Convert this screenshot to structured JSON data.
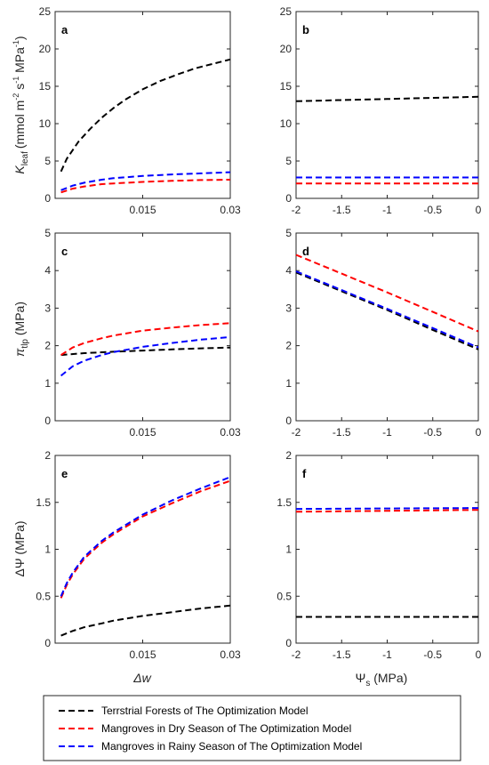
{
  "legend": [
    {
      "label": "Terrstrial Forests of The Optimization Model",
      "color": "#000000"
    },
    {
      "label": "Mangroves in Dry Season of The Optimization Model",
      "color": "#ff0000"
    },
    {
      "label": "Mangroves in Rainy Season of The Optimization Model",
      "color": "#0000ff"
    }
  ],
  "axis_labels": {
    "kleaf_main": "K",
    "kleaf_sub": "leaf",
    "kleaf_units": "(mmol m",
    "kleaf_exp1": "-2",
    "kleaf_mid": " s",
    "kleaf_exp2": "-1",
    "kleaf_mid2": " MPa",
    "kleaf_exp3": "-1",
    "kleaf_close": ")",
    "pi_main": "π",
    "pi_sub": "tlp",
    "pi_units": " (MPa)",
    "dpsi": "ΔΨ (MPa)",
    "dw": "Δw",
    "psis_main": "Ψ",
    "psis_sub": "s",
    "psis_units": " (MPa)"
  },
  "chart_data": [
    {
      "panel": "a",
      "type": "line",
      "xlim": [
        0,
        0.03
      ],
      "ylim": [
        0,
        25
      ],
      "xticks": [
        "0.015",
        "0.03"
      ],
      "yticks": [
        "0",
        "5",
        "10",
        "15",
        "20",
        "25"
      ],
      "series": [
        {
          "name": "Terrstrial Forests of The Optimization Model",
          "color": "#000000",
          "x": [
            0.001,
            0.002,
            0.004,
            0.006,
            0.008,
            0.01,
            0.012,
            0.015,
            0.018,
            0.021,
            0.024,
            0.027,
            0.03
          ],
          "y": [
            3.6,
            5.3,
            7.6,
            9.3,
            10.8,
            12.1,
            13.2,
            14.6,
            15.7,
            16.6,
            17.4,
            18.0,
            18.6
          ]
        },
        {
          "name": "Mangroves in Dry Season of The Optimization Model",
          "color": "#ff0000",
          "x": [
            0.001,
            0.003,
            0.005,
            0.008,
            0.01,
            0.015,
            0.02,
            0.025,
            0.03
          ],
          "y": [
            0.8,
            1.3,
            1.6,
            1.9,
            2.0,
            2.2,
            2.35,
            2.45,
            2.5
          ]
        },
        {
          "name": "Mangroves in Rainy Season of The Optimization Model",
          "color": "#0000ff",
          "x": [
            0.001,
            0.003,
            0.005,
            0.008,
            0.01,
            0.015,
            0.02,
            0.025,
            0.03
          ],
          "y": [
            1.1,
            1.7,
            2.1,
            2.5,
            2.7,
            3.0,
            3.2,
            3.35,
            3.5
          ]
        }
      ]
    },
    {
      "panel": "b",
      "type": "line",
      "xlim": [
        -2,
        0
      ],
      "ylim": [
        0,
        25
      ],
      "xticks": [
        "-2",
        "-1.5",
        "-1",
        "-0.5",
        "0"
      ],
      "yticks": [
        "0",
        "5",
        "10",
        "15",
        "20",
        "25"
      ],
      "series": [
        {
          "name": "Terrstrial Forests of The Optimization Model",
          "color": "#000000",
          "x": [
            -2,
            -1.5,
            -1,
            -0.5,
            0
          ],
          "y": [
            13.0,
            13.15,
            13.3,
            13.45,
            13.6
          ]
        },
        {
          "name": "Mangroves in Dry Season of The Optimization Model",
          "color": "#ff0000",
          "x": [
            -2,
            0
          ],
          "y": [
            2.0,
            2.0
          ]
        },
        {
          "name": "Mangroves in Rainy Season of The Optimization Model",
          "color": "#0000ff",
          "x": [
            -2,
            0
          ],
          "y": [
            2.8,
            2.8
          ]
        }
      ]
    },
    {
      "panel": "c",
      "type": "line",
      "xlim": [
        0,
        0.03
      ],
      "ylim": [
        0,
        5
      ],
      "xticks": [
        "0.015",
        "0.03"
      ],
      "yticks": [
        "0",
        "1",
        "2",
        "3",
        "4",
        "5"
      ],
      "series": [
        {
          "name": "Terrstrial Forests of The Optimization Model",
          "color": "#000000",
          "x": [
            0.001,
            0.005,
            0.01,
            0.015,
            0.02,
            0.025,
            0.03
          ],
          "y": [
            1.75,
            1.8,
            1.84,
            1.87,
            1.9,
            1.93,
            1.95
          ]
        },
        {
          "name": "Mangroves in Dry Season of The Optimization Model",
          "color": "#ff0000",
          "x": [
            0.001,
            0.003,
            0.005,
            0.008,
            0.01,
            0.015,
            0.02,
            0.025,
            0.03
          ],
          "y": [
            1.75,
            1.95,
            2.07,
            2.2,
            2.27,
            2.4,
            2.48,
            2.55,
            2.6
          ]
        },
        {
          "name": "Mangroves in Rainy Season of The Optimization Model",
          "color": "#0000ff",
          "x": [
            0.001,
            0.003,
            0.005,
            0.008,
            0.01,
            0.015,
            0.02,
            0.025,
            0.03
          ],
          "y": [
            1.2,
            1.45,
            1.6,
            1.75,
            1.83,
            1.97,
            2.07,
            2.16,
            2.23
          ]
        }
      ]
    },
    {
      "panel": "d",
      "type": "line",
      "xlim": [
        -2,
        0
      ],
      "ylim": [
        0,
        5
      ],
      "xticks": [
        "-2",
        "-1.5",
        "-1",
        "-0.5",
        "0"
      ],
      "yticks": [
        "0",
        "1",
        "2",
        "3",
        "4",
        "5"
      ],
      "series": [
        {
          "name": "Terrstrial Forests of The Optimization Model",
          "color": "#000000",
          "x": [
            -2,
            -1.5,
            -1,
            -0.5,
            0
          ],
          "y": [
            3.95,
            3.45,
            2.95,
            2.42,
            1.9
          ]
        },
        {
          "name": "Mangroves in Dry Season of The Optimization Model",
          "color": "#ff0000",
          "x": [
            -2,
            -1.5,
            -1,
            -0.5,
            0
          ],
          "y": [
            4.42,
            3.92,
            3.42,
            2.9,
            2.38
          ]
        },
        {
          "name": "Mangroves in Rainy Season of The Optimization Model",
          "color": "#0000ff",
          "x": [
            -2,
            -1.5,
            -1,
            -0.5,
            0
          ],
          "y": [
            3.98,
            3.48,
            2.98,
            2.47,
            1.95
          ]
        }
      ]
    },
    {
      "panel": "e",
      "type": "line",
      "xlim": [
        0,
        0.03
      ],
      "ylim": [
        0,
        2
      ],
      "xticks": [
        "0.015",
        "0.03"
      ],
      "yticks": [
        "0",
        "0.5",
        "1",
        "1.5",
        "2"
      ],
      "series": [
        {
          "name": "Terrstrial Forests of The Optimization Model",
          "color": "#000000",
          "x": [
            0.001,
            0.003,
            0.005,
            0.008,
            0.01,
            0.015,
            0.02,
            0.025,
            0.03
          ],
          "y": [
            0.08,
            0.13,
            0.17,
            0.21,
            0.24,
            0.29,
            0.33,
            0.37,
            0.4
          ]
        },
        {
          "name": "Mangroves in Dry Season of The Optimization Model",
          "color": "#ff0000",
          "x": [
            0.001,
            0.002,
            0.003,
            0.005,
            0.008,
            0.01,
            0.015,
            0.02,
            0.025,
            0.03
          ],
          "y": [
            0.48,
            0.62,
            0.73,
            0.9,
            1.07,
            1.16,
            1.35,
            1.49,
            1.62,
            1.73
          ]
        },
        {
          "name": "Mangroves in Rainy Season of The Optimization Model",
          "color": "#0000ff",
          "x": [
            0.001,
            0.002,
            0.003,
            0.005,
            0.008,
            0.01,
            0.015,
            0.02,
            0.025,
            0.03
          ],
          "y": [
            0.5,
            0.64,
            0.75,
            0.92,
            1.09,
            1.18,
            1.37,
            1.52,
            1.65,
            1.77
          ]
        }
      ]
    },
    {
      "panel": "f",
      "type": "line",
      "xlim": [
        -2,
        0
      ],
      "ylim": [
        0,
        2
      ],
      "xticks": [
        "-2",
        "-1.5",
        "-1",
        "-0.5",
        "0"
      ],
      "yticks": [
        "0",
        "0.5",
        "1",
        "1.5",
        "2"
      ],
      "series": [
        {
          "name": "Terrstrial Forests of The Optimization Model",
          "color": "#000000",
          "x": [
            -2,
            0
          ],
          "y": [
            0.28,
            0.28
          ]
        },
        {
          "name": "Mangroves in Dry Season of The Optimization Model",
          "color": "#ff0000",
          "x": [
            -2,
            0
          ],
          "y": [
            1.4,
            1.42
          ]
        },
        {
          "name": "Mangroves in Rainy Season of The Optimization Model",
          "color": "#0000ff",
          "x": [
            -2,
            0
          ],
          "y": [
            1.43,
            1.44
          ]
        }
      ]
    }
  ]
}
